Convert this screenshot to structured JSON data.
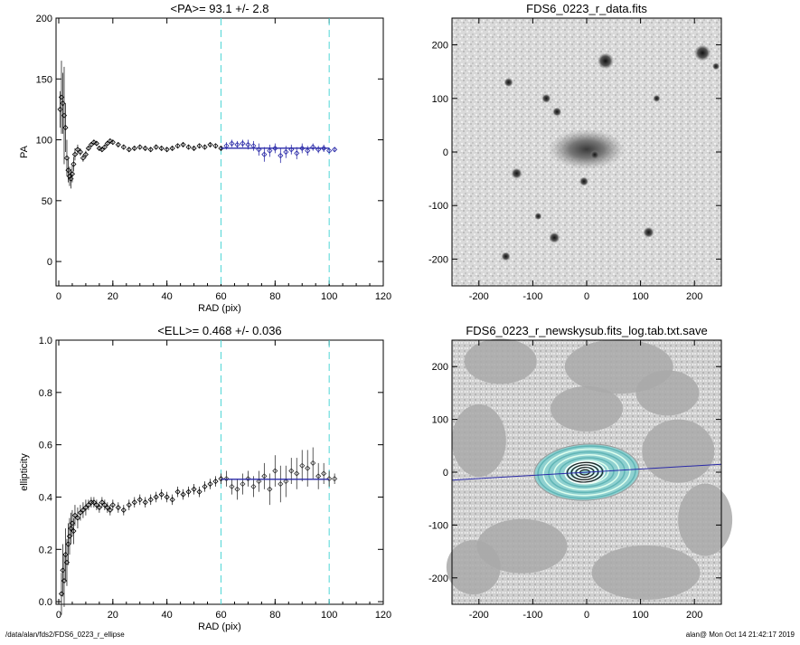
{
  "footer": {
    "path": "/data/alan/fds2/FDS6_0223_r_ellipse",
    "stamp": "alan@  Mon Oct 14 21:42:17 2019"
  },
  "chart_data": [
    {
      "type": "scatter",
      "title": "<PA>=  93.1 +/-   2.8",
      "xlabel": "RAD (pix)",
      "ylabel": "PA",
      "xlim": [
        -1,
        120
      ],
      "ylim": [
        -20,
        200
      ],
      "xticks": [
        "0",
        "20",
        "40",
        "60",
        "80",
        "100",
        "120"
      ],
      "yticks": [
        "0",
        "50",
        "100",
        "150",
        "200"
      ],
      "vlines": [
        60,
        100
      ],
      "fit": {
        "x": [
          60,
          100
        ],
        "y": [
          93.1,
          93.1
        ]
      },
      "x": [
        0.5,
        1.0,
        1.5,
        2.0,
        2.5,
        3.0,
        3.5,
        4.0,
        4.5,
        5.0,
        5.5,
        6.0,
        7.0,
        8.0,
        9.0,
        10,
        11,
        12,
        13,
        14,
        15,
        16,
        17,
        18,
        19,
        20,
        22,
        24,
        26,
        28,
        30,
        32,
        34,
        36,
        38,
        40,
        42,
        44,
        46,
        48,
        50,
        52,
        54,
        56,
        58,
        60
      ],
      "y": [
        125,
        135,
        130,
        120,
        110,
        85,
        75,
        70,
        68,
        72,
        80,
        88,
        92,
        90,
        85,
        88,
        93,
        96,
        98,
        97,
        93,
        92,
        94,
        97,
        99,
        98,
        96,
        94,
        92,
        93,
        94,
        93,
        92,
        94,
        93,
        92,
        93,
        95,
        96,
        94,
        93,
        95,
        94,
        96,
        95,
        93
      ],
      "err": [
        15,
        30,
        25,
        40,
        20,
        15,
        10,
        8,
        8,
        7,
        6,
        5,
        4,
        3,
        3,
        3,
        2,
        2,
        2,
        2,
        2,
        2,
        2,
        2,
        2,
        2,
        2,
        2,
        2,
        2,
        2,
        2,
        2,
        2,
        2,
        2,
        2,
        2,
        2,
        2,
        2,
        2,
        2,
        2,
        2,
        2
      ],
      "series_outer": {
        "x": [
          62,
          64,
          66,
          68,
          70,
          72,
          74,
          76,
          78,
          80,
          82,
          84,
          86,
          88,
          90,
          92,
          94,
          96,
          98,
          100,
          102
        ],
        "y": [
          95,
          97,
          96,
          97,
          96,
          95,
          92,
          88,
          91,
          93,
          87,
          90,
          92,
          89,
          93,
          91,
          94,
          92,
          93,
          91,
          92
        ],
        "err": [
          3,
          3,
          3,
          3,
          4,
          4,
          5,
          6,
          5,
          4,
          6,
          5,
          4,
          5,
          4,
          4,
          3,
          3,
          3,
          2,
          2
        ]
      }
    },
    {
      "type": "image",
      "title": "FDS6_0223_r_data.fits",
      "xlim": [
        -250,
        250
      ],
      "ylim": [
        -250,
        250
      ],
      "xticks": [
        "-200",
        "-100",
        "0",
        "100",
        "200"
      ],
      "yticks": [
        "-200",
        "-100",
        "0",
        "100",
        "200"
      ]
    },
    {
      "type": "scatter",
      "title": "<ELL>= 0.468 +/-  0.036",
      "xlabel": "RAD (pix)",
      "ylabel": "ellipticity",
      "xlim": [
        -1,
        120
      ],
      "ylim": [
        -0.01,
        1.0
      ],
      "xticks": [
        "0",
        "20",
        "40",
        "60",
        "80",
        "100",
        "120"
      ],
      "yticks": [
        "0.0",
        "0.2",
        "0.4",
        "0.6",
        "0.8",
        "1.0"
      ],
      "vlines": [
        60,
        100
      ],
      "fit": {
        "x": [
          60,
          100
        ],
        "y": [
          0.468,
          0.468
        ]
      },
      "x": [
        1,
        1.5,
        2,
        2.5,
        3,
        3.5,
        4,
        4.5,
        5,
        5.5,
        6,
        7,
        8,
        9,
        10,
        11,
        12,
        13,
        14,
        15,
        16,
        17,
        18,
        19,
        20,
        22,
        24,
        26,
        28,
        30,
        32,
        34,
        36,
        38,
        40,
        42,
        44,
        46,
        48,
        50,
        52,
        54,
        56,
        58,
        60
      ],
      "y": [
        0.03,
        0.12,
        0.08,
        0.18,
        0.15,
        0.22,
        0.25,
        0.28,
        0.3,
        0.27,
        0.33,
        0.32,
        0.34,
        0.35,
        0.36,
        0.37,
        0.38,
        0.38,
        0.37,
        0.36,
        0.38,
        0.37,
        0.36,
        0.35,
        0.37,
        0.36,
        0.35,
        0.37,
        0.38,
        0.39,
        0.38,
        0.39,
        0.4,
        0.41,
        0.4,
        0.39,
        0.42,
        0.41,
        0.42,
        0.43,
        0.42,
        0.44,
        0.45,
        0.46,
        0.47
      ],
      "err": [
        0.08,
        0.1,
        0.1,
        0.1,
        0.09,
        0.08,
        0.07,
        0.06,
        0.05,
        0.05,
        0.04,
        0.04,
        0.03,
        0.03,
        0.03,
        0.02,
        0.02,
        0.02,
        0.02,
        0.02,
        0.02,
        0.02,
        0.02,
        0.02,
        0.02,
        0.02,
        0.02,
        0.02,
        0.02,
        0.02,
        0.02,
        0.02,
        0.02,
        0.02,
        0.02,
        0.02,
        0.02,
        0.02,
        0.02,
        0.02,
        0.02,
        0.02,
        0.02,
        0.02,
        0.02
      ],
      "series_outer": {
        "x": [
          62,
          64,
          66,
          68,
          70,
          72,
          74,
          76,
          78,
          80,
          82,
          84,
          86,
          88,
          90,
          92,
          94,
          96,
          98,
          100,
          102
        ],
        "y": [
          0.47,
          0.44,
          0.43,
          0.45,
          0.47,
          0.44,
          0.46,
          0.48,
          0.43,
          0.5,
          0.45,
          0.46,
          0.5,
          0.49,
          0.52,
          0.51,
          0.53,
          0.48,
          0.49,
          0.47,
          0.47
        ],
        "err": [
          0.03,
          0.03,
          0.04,
          0.04,
          0.03,
          0.04,
          0.04,
          0.05,
          0.06,
          0.06,
          0.07,
          0.06,
          0.05,
          0.06,
          0.06,
          0.07,
          0.06,
          0.05,
          0.04,
          0.03,
          0.02
        ]
      }
    },
    {
      "type": "image",
      "title": "FDS6_0223_r_newskysub.fits_log.tab.txt.save",
      "xlim": [
        -250,
        250
      ],
      "ylim": [
        -250,
        250
      ],
      "xticks": [
        "-200",
        "-100",
        "0",
        "100",
        "200"
      ],
      "yticks": [
        "-200",
        "-100",
        "0",
        "100",
        "200"
      ],
      "major_axis_pa": 93.1,
      "ellipticity": 0.468
    }
  ]
}
